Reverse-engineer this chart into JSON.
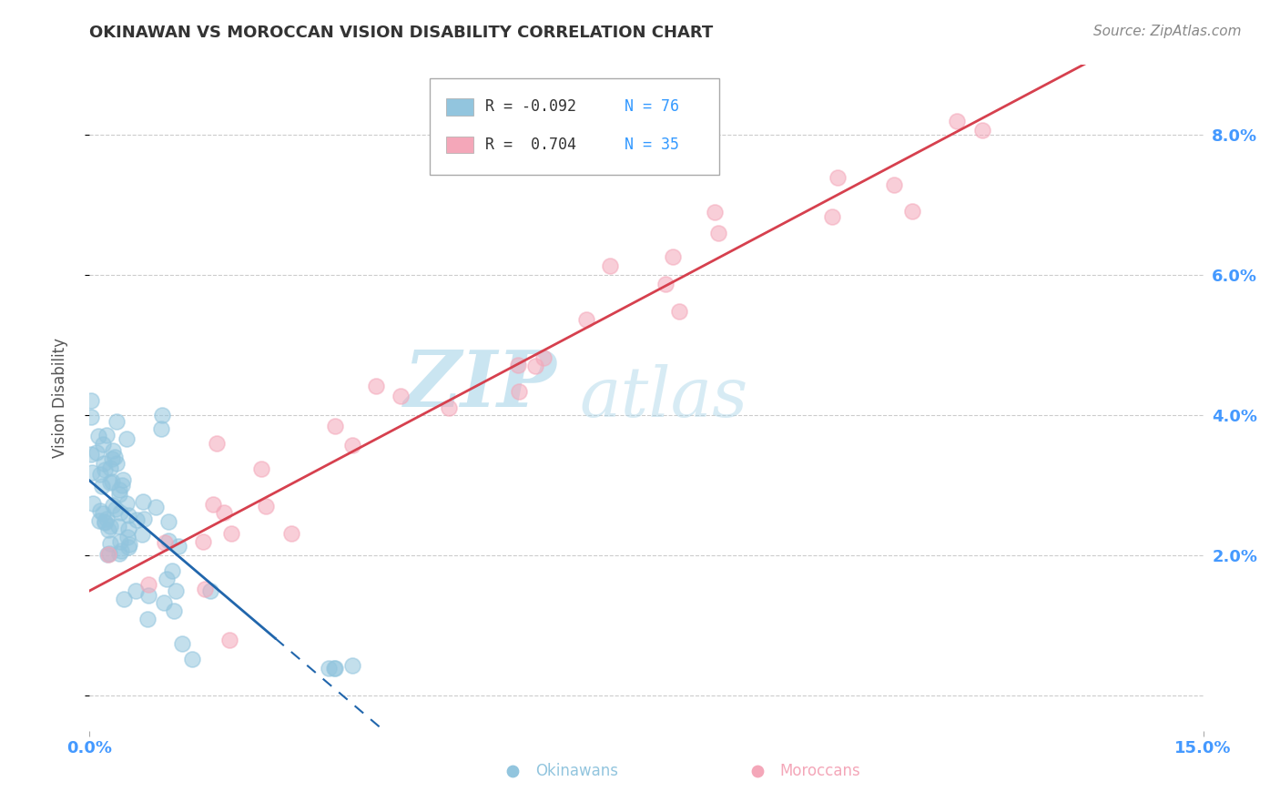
{
  "title": "OKINAWAN VS MOROCCAN VISION DISABILITY CORRELATION CHART",
  "source": "Source: ZipAtlas.com",
  "ylabel": "Vision Disability",
  "xlim": [
    0.0,
    0.15
  ],
  "ylim": [
    -0.005,
    0.09
  ],
  "ytick_vals": [
    0.0,
    0.02,
    0.04,
    0.06,
    0.08
  ],
  "ytick_labels": [
    "",
    "2.0%",
    "4.0%",
    "6.0%",
    "8.0%"
  ],
  "xtick_vals": [
    0.0,
    0.15
  ],
  "xtick_labels": [
    "0.0%",
    "15.0%"
  ],
  "legend_r1": "R = -0.092",
  "legend_n1": "N = 76",
  "legend_r2": "R =  0.704",
  "legend_n2": "N = 35",
  "okinawan_color": "#92c5de",
  "moroccan_color": "#f4a7b9",
  "okinawan_line_color": "#2166ac",
  "moroccan_line_color": "#d6404e",
  "watermark_zip": "ZIP",
  "watermark_atlas": "atlas",
  "background_color": "#ffffff",
  "grid_color": "#cccccc",
  "title_color": "#333333",
  "source_color": "#888888",
  "axis_label_color": "#555555",
  "tick_color": "#4499ff",
  "legend_text_color": "#333333",
  "legend_num_color": "#3399ff",
  "bottom_label_ok_color": "#92c5de",
  "bottom_label_mo_color": "#f4a7b9"
}
